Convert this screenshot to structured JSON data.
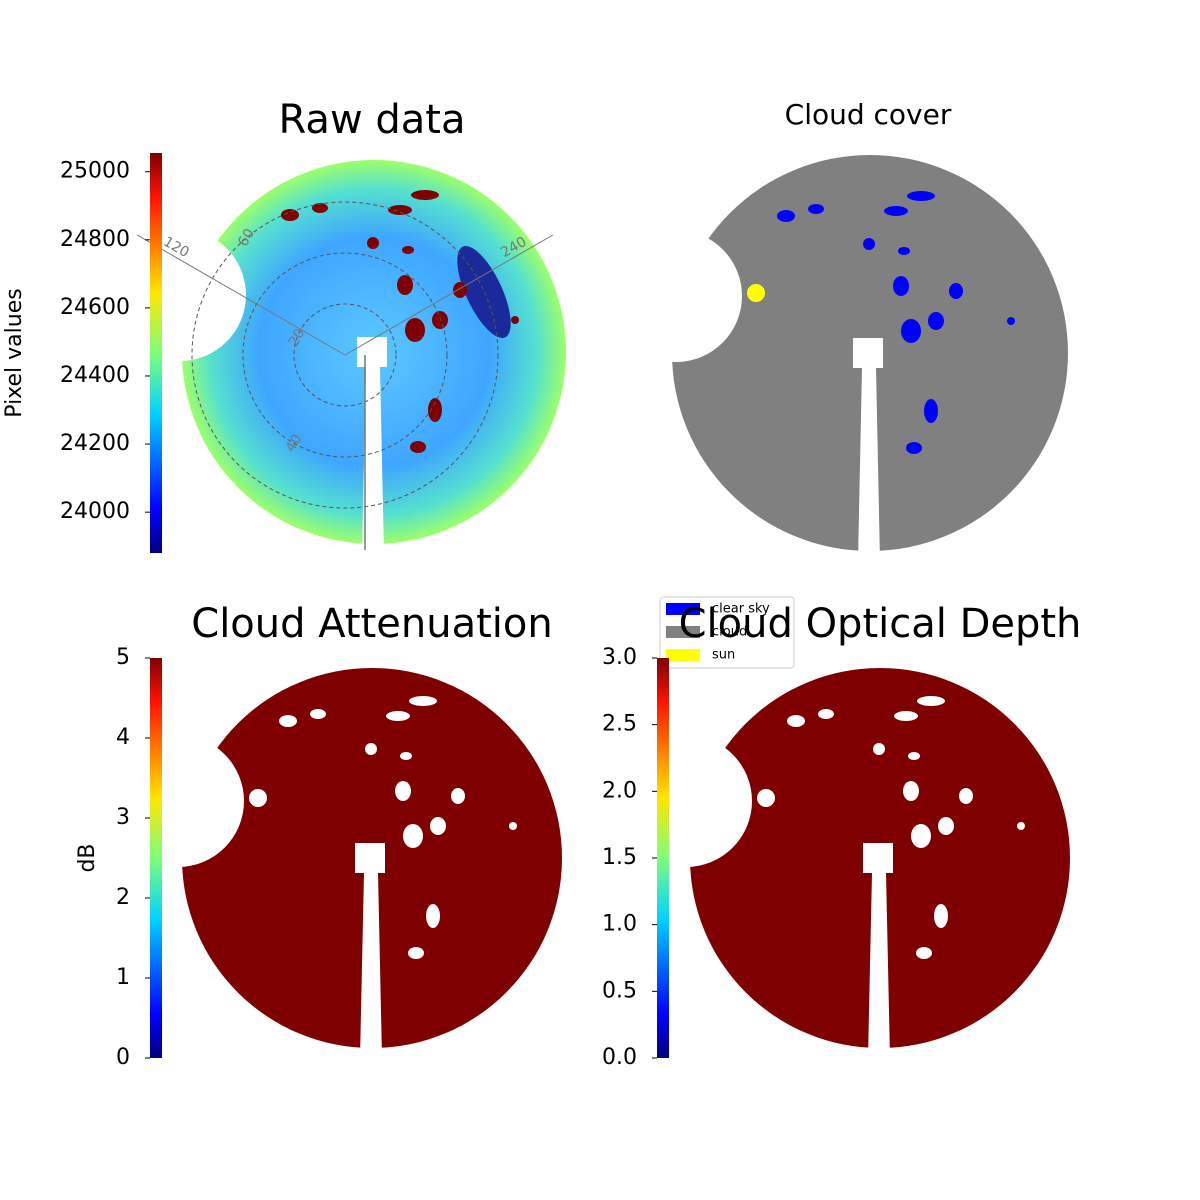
{
  "chart_data": [
    {
      "type": "image",
      "title": "Raw data",
      "colorbar": {
        "label": "Pixel values",
        "lim": [
          23880,
          25055
        ],
        "ticks": [
          24000,
          24200,
          24400,
          24600,
          24800,
          25000
        ]
      },
      "zenith_ticks": [
        20,
        40,
        60
      ],
      "azimuth_ticks": [
        120,
        240
      ]
    },
    {
      "type": "image",
      "title": "Cloud cover",
      "legend": [
        {
          "name": "clear sky",
          "color": "#0000ff"
        },
        {
          "name": "cloud",
          "color": "#808080"
        },
        {
          "name": "sun",
          "color": "#ffff00"
        }
      ]
    },
    {
      "type": "image",
      "title": "Cloud Attenuation",
      "colorbar": {
        "label": "dB",
        "lim": [
          0,
          5
        ],
        "ticks": [
          0,
          1,
          2,
          3,
          4,
          5
        ]
      }
    },
    {
      "type": "image",
      "title": "Cloud Optical Depth",
      "colorbar": {
        "lim": [
          0,
          3
        ],
        "ticks": [
          {
            "value": 0,
            "label": "0.0"
          },
          {
            "value": 0.5,
            "label": "0.5"
          },
          {
            "value": 1,
            "label": "1.0"
          },
          {
            "value": 1.5,
            "label": "1.5"
          },
          {
            "value": 2,
            "label": "2.0"
          },
          {
            "value": 2.5,
            "label": "2.5"
          },
          {
            "value": 3,
            "label": "3.0"
          }
        ]
      }
    }
  ]
}
